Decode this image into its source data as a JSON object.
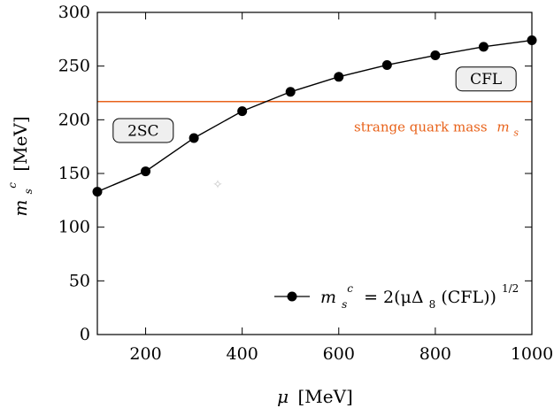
{
  "chart_data": {
    "type": "line",
    "xlabel_symbol": "μ",
    "xlabel_unit": "[MeV]",
    "ylabel_symbol": "m",
    "ylabel_sub": "s",
    "ylabel_sup": "c",
    "ylabel_unit": "[MeV]",
    "xlim": [
      100,
      1000
    ],
    "ylim": [
      0,
      300
    ],
    "x_ticks": [
      "200",
      "400",
      "600",
      "800",
      "1000"
    ],
    "y_ticks": [
      "0",
      "50",
      "100",
      "150",
      "200",
      "250",
      "300"
    ],
    "grid": false,
    "series": [
      {
        "legend_lhs": "m",
        "legend_sub": "s",
        "legend_sup": "c",
        "legend_rhs": "= 2(μΔ",
        "legend_rhs_sub": "8",
        "legend_rhs_tail": "(CFL))",
        "legend_rhs_sup": "1/2",
        "color": "#000000",
        "marker": "circle",
        "x": [
          100,
          200,
          300,
          400,
          500,
          600,
          700,
          800,
          900,
          1000
        ],
        "y": [
          133,
          152,
          183,
          208,
          226,
          240,
          251,
          260,
          268,
          274
        ]
      }
    ],
    "reference_line": {
      "y": 217,
      "color": "#e8621a",
      "label": "strange quark mass",
      "label_symbol": "m",
      "label_sub": "s"
    },
    "annotations": [
      {
        "label": "2SC",
        "x": 195,
        "y": 190
      },
      {
        "label": "CFL",
        "x": 905,
        "y": 238
      }
    ],
    "legend_position": "bottom-right"
  }
}
